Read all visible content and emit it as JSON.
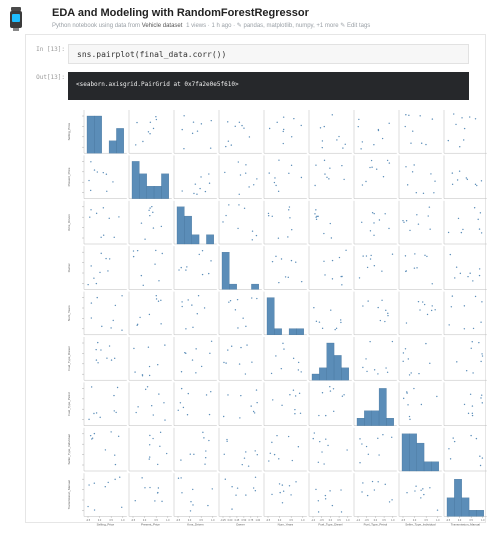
{
  "header": {
    "title": "EDA and Modeling with RandomForestRegressor",
    "subtitle_lead": "Python notebook using data from",
    "subtitle_source": "Vehicle dataset",
    "subtitle_meta": "1 views · 1 h ago · ✎ pandas, matplotlib, numpy, +1 more ✎ Edit tags"
  },
  "cells": {
    "in_prompt": "In [13]:",
    "code": "sns.pairplot(final_data.corr())",
    "out_prompt": "Out[13]:",
    "output_text": "<seaborn.axisgrid.PairGrid at 0x7fa2e0e5f610>"
  },
  "colors": {
    "hist_fill": "#5b8db8",
    "dot": "#5b8db8",
    "code_bg": "#f7f7f7",
    "out_bg": "#26282b"
  },
  "chart_data": {
    "type": "scatter",
    "kind": "pairplot",
    "variables": [
      "Selling_Price",
      "Present_Price",
      "Kms_Driven",
      "Owner",
      "Num_Years",
      "Fuel_Type_Diesel",
      "Fuel_Type_Petrol",
      "Seller_Type_Individual",
      "Transmission_Manual"
    ],
    "x_ticks": [
      [
        "-0.5",
        "0.0",
        "0.5",
        "1.0"
      ],
      [
        "-0.5",
        "0.0",
        "0.5",
        "1.0"
      ],
      [
        "-0.5",
        "0.0",
        "0.5",
        "1.0"
      ],
      [
        "-0.25",
        "0.00",
        "0.25",
        "0.50",
        "0.75",
        "1.00"
      ],
      [
        "-0.5",
        "0.0",
        "0.5",
        "1.0"
      ],
      [
        "-1.0",
        "-0.5",
        "0.0",
        "0.5",
        "1.0"
      ],
      [
        "-1.0",
        "-0.5",
        "0.0",
        "0.5",
        "1.0"
      ],
      [
        "-0.5",
        "0.0",
        "0.5",
        "1.0"
      ],
      [
        "-0.5",
        "0.0",
        "0.5",
        "1.0"
      ]
    ],
    "ylim": [
      -1,
      1
    ],
    "histograms": [
      [
        3,
        3,
        0,
        1,
        2
      ],
      [
        3,
        2,
        1,
        1,
        2
      ],
      [
        4,
        3,
        1,
        0,
        1
      ],
      [
        7,
        1,
        0,
        0,
        1
      ],
      [
        6,
        1,
        0,
        1,
        1
      ],
      [
        1,
        2,
        6,
        4,
        2
      ],
      [
        1,
        2,
        2,
        5,
        1
      ],
      [
        4,
        4,
        3,
        1,
        1
      ],
      [
        3,
        6,
        3,
        1,
        1
      ]
    ]
  }
}
